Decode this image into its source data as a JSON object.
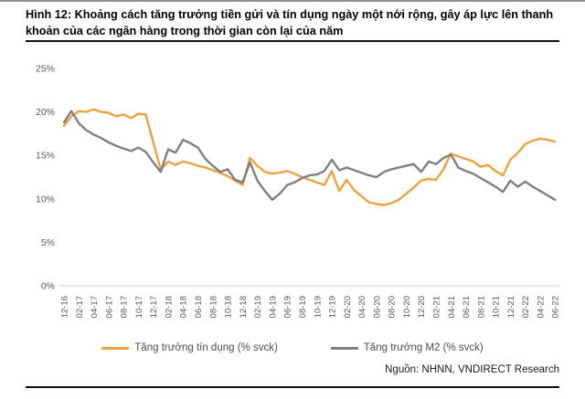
{
  "figure": {
    "title": "Hình 12: Khoảng cách tăng trưởng tiền gửi và tín dụng ngày một nới rộng, gây áp lực lên thanh khoản của các ngân hàng trong thời gian còn lại của năm",
    "source": "Nguồn: NHNN, VNDIRECT Research"
  },
  "colors": {
    "credit_line": "#eea13f",
    "m2_line": "#7f7f7f",
    "axis_text": "#595959",
    "baseline": "#d9d9d9"
  },
  "chart_data": {
    "type": "line",
    "title": "",
    "xlabel": "",
    "ylabel": "",
    "ylim": [
      0,
      25
    ],
    "grid": false,
    "legend_position": "bottom-center",
    "y_tick_labels": [
      "0%",
      "5%",
      "10%",
      "15%",
      "20%",
      "25%"
    ],
    "x_frequency": "monthly points, tick label every 2nd month",
    "x_tick_labels": [
      "12-16",
      "02-17",
      "04-17",
      "06-17",
      "08-17",
      "10-17",
      "12-17",
      "02-18",
      "04-18",
      "06-18",
      "08-18",
      "10-18",
      "12-18",
      "02-19",
      "04-19",
      "06-19",
      "08-19",
      "10-19",
      "12-19",
      "02-20",
      "04-20",
      "06-20",
      "08-20",
      "10-20",
      "12-20",
      "02-21",
      "04-21",
      "06-21",
      "08-21",
      "10-21",
      "12-21",
      "02-22",
      "04-22",
      "06-22"
    ],
    "series": [
      {
        "name": "Tăng trưởng tín dụng (% svck)",
        "color": "#eea13f",
        "values": [
          18.4,
          19.5,
          20.1,
          20.0,
          20.3,
          20.0,
          19.9,
          19.5,
          19.7,
          19.3,
          19.8,
          19.7,
          16.5,
          13.4,
          14.3,
          13.9,
          14.3,
          14.1,
          13.8,
          13.6,
          13.3,
          13.0,
          12.6,
          12.1,
          11.6,
          14.7,
          13.8,
          13.1,
          12.9,
          13.0,
          13.2,
          12.9,
          12.5,
          12.2,
          11.9,
          11.6,
          13.2,
          10.9,
          12.2,
          11.0,
          10.3,
          9.6,
          9.4,
          9.3,
          9.5,
          9.9,
          10.6,
          11.3,
          12.1,
          12.3,
          12.2,
          13.4,
          15.2,
          14.9,
          14.6,
          14.3,
          13.7,
          13.9,
          13.2,
          12.7,
          14.5,
          15.3,
          16.3,
          16.7,
          16.9,
          16.8,
          16.6
        ]
      },
      {
        "name": "Tăng trưởng M2 (% svck)",
        "color": "#7f7f7f",
        "values": [
          18.8,
          20.1,
          18.7,
          17.9,
          17.4,
          17.0,
          16.5,
          16.1,
          15.8,
          15.5,
          15.9,
          15.4,
          14.2,
          13.1,
          15.7,
          15.3,
          16.8,
          16.4,
          15.9,
          14.6,
          13.8,
          13.1,
          13.4,
          12.2,
          11.9,
          14.2,
          12.1,
          10.9,
          9.9,
          10.6,
          11.6,
          11.9,
          12.4,
          12.7,
          12.8,
          13.2,
          14.5,
          13.3,
          13.6,
          13.3,
          13.0,
          12.7,
          12.5,
          13.1,
          13.4,
          13.6,
          13.8,
          14.0,
          13.1,
          14.3,
          14.0,
          14.7,
          15.1,
          13.6,
          13.2,
          12.9,
          12.4,
          11.9,
          11.4,
          10.8,
          12.1,
          11.4,
          12.0,
          11.4,
          10.9,
          10.4,
          9.9
        ]
      }
    ]
  }
}
